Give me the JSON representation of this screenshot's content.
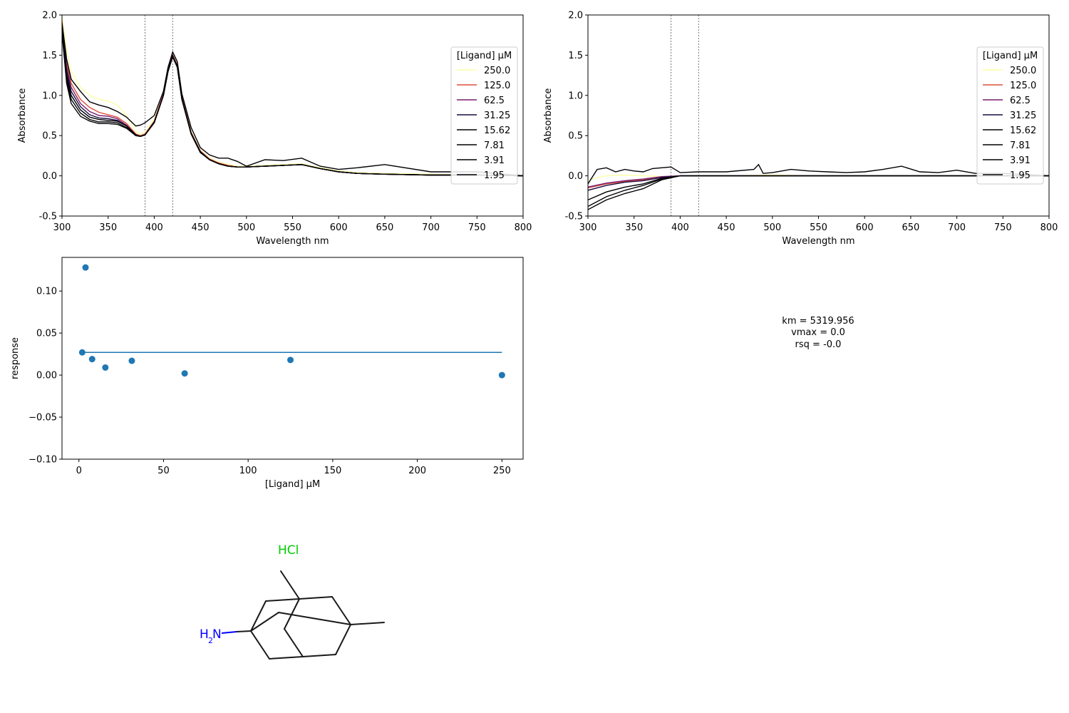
{
  "chart_data": [
    {
      "type": "line",
      "panel": "raw-spectra",
      "title": "",
      "xlabel": "Wavelength nm",
      "ylabel": "Absorbance",
      "xlim": [
        300,
        800
      ],
      "ylim": [
        -0.5,
        2.0
      ],
      "xticks": [
        300,
        350,
        400,
        450,
        500,
        550,
        600,
        650,
        700,
        750,
        800
      ],
      "yticks": [
        -0.5,
        0.0,
        0.5,
        1.0,
        1.5,
        2.0
      ],
      "vlines": [
        390,
        420
      ],
      "legend": {
        "title": "[Ligand] µM",
        "placement": "right"
      },
      "series": [
        {
          "name": "250.0",
          "color": "#fcffa4",
          "x": [
            300,
            305,
            310,
            320,
            330,
            340,
            350,
            360,
            370,
            380,
            385,
            390,
            400,
            410,
            415,
            420,
            425,
            430,
            440,
            450,
            460,
            470,
            480,
            490,
            500,
            520,
            540,
            560,
            580,
            600,
            620,
            650,
            700,
            750,
            800
          ],
          "y": [
            1.98,
            1.55,
            1.3,
            1.1,
            1.0,
            0.95,
            0.93,
            0.88,
            0.75,
            0.55,
            0.52,
            0.54,
            0.7,
            1.05,
            1.35,
            1.52,
            1.4,
            1.0,
            0.55,
            0.32,
            0.22,
            0.17,
            0.14,
            0.12,
            0.12,
            0.13,
            0.14,
            0.15,
            0.1,
            0.06,
            0.04,
            0.03,
            0.02,
            0.01,
            0.0
          ]
        },
        {
          "name": "125.0",
          "color": "#dd513a",
          "x": [
            300,
            305,
            310,
            320,
            330,
            340,
            350,
            360,
            370,
            380,
            385,
            390,
            400,
            410,
            415,
            420,
            425,
            430,
            440,
            450,
            460,
            470,
            480,
            490,
            500,
            520,
            540,
            560,
            580,
            600,
            620,
            650,
            700,
            750,
            800
          ],
          "y": [
            1.92,
            1.4,
            1.15,
            0.95,
            0.85,
            0.79,
            0.76,
            0.73,
            0.65,
            0.52,
            0.5,
            0.52,
            0.68,
            1.02,
            1.32,
            1.5,
            1.38,
            0.98,
            0.54,
            0.31,
            0.21,
            0.16,
            0.13,
            0.11,
            0.11,
            0.12,
            0.13,
            0.14,
            0.09,
            0.05,
            0.03,
            0.02,
            0.01,
            0.01,
            0.0
          ]
        },
        {
          "name": "62.5",
          "color": "#7a1c6d",
          "x": [
            300,
            305,
            310,
            320,
            330,
            340,
            350,
            360,
            370,
            380,
            385,
            390,
            400,
            410,
            415,
            420,
            425,
            430,
            440,
            450,
            460,
            470,
            480,
            490,
            500,
            520,
            540,
            560,
            580,
            600,
            620,
            650,
            700,
            750,
            800
          ],
          "y": [
            1.88,
            1.35,
            1.1,
            0.9,
            0.8,
            0.75,
            0.74,
            0.71,
            0.63,
            0.51,
            0.49,
            0.51,
            0.67,
            1.01,
            1.31,
            1.5,
            1.37,
            0.97,
            0.53,
            0.3,
            0.2,
            0.15,
            0.12,
            0.11,
            0.11,
            0.12,
            0.13,
            0.14,
            0.09,
            0.05,
            0.03,
            0.02,
            0.01,
            0.01,
            0.0
          ]
        },
        {
          "name": "31.25",
          "color": "#1b0c41",
          "x": [
            300,
            305,
            310,
            320,
            330,
            340,
            350,
            360,
            370,
            380,
            385,
            390,
            400,
            410,
            415,
            420,
            425,
            430,
            440,
            450,
            460,
            470,
            480,
            490,
            500,
            520,
            540,
            560,
            580,
            600,
            620,
            650,
            700,
            750,
            800
          ],
          "y": [
            1.85,
            1.3,
            1.05,
            0.86,
            0.76,
            0.72,
            0.71,
            0.69,
            0.62,
            0.51,
            0.49,
            0.51,
            0.67,
            1.0,
            1.3,
            1.49,
            1.36,
            0.96,
            0.53,
            0.3,
            0.2,
            0.15,
            0.12,
            0.11,
            0.11,
            0.12,
            0.13,
            0.14,
            0.09,
            0.05,
            0.03,
            0.02,
            0.01,
            0.01,
            0.0
          ]
        },
        {
          "name": "15.62",
          "color": "#000004",
          "x": [
            300,
            305,
            310,
            320,
            330,
            340,
            350,
            360,
            370,
            380,
            385,
            390,
            400,
            410,
            415,
            420,
            425,
            430,
            440,
            450,
            460,
            470,
            480,
            490,
            500,
            520,
            540,
            560,
            580,
            600,
            620,
            650,
            700,
            750,
            800
          ],
          "y": [
            1.82,
            1.25,
            1.0,
            0.82,
            0.73,
            0.7,
            0.69,
            0.68,
            0.62,
            0.51,
            0.49,
            0.51,
            0.66,
            1.0,
            1.3,
            1.49,
            1.36,
            0.96,
            0.53,
            0.3,
            0.2,
            0.15,
            0.12,
            0.11,
            0.11,
            0.12,
            0.13,
            0.14,
            0.09,
            0.05,
            0.03,
            0.02,
            0.01,
            0.01,
            0.0
          ]
        },
        {
          "name": "7.81",
          "color": "#000004",
          "x": [
            300,
            305,
            310,
            320,
            330,
            340,
            350,
            360,
            370,
            380,
            385,
            390,
            400,
            410,
            415,
            420,
            425,
            430,
            440,
            450,
            460,
            470,
            480,
            490,
            500,
            520,
            540,
            560,
            580,
            600,
            620,
            650,
            700,
            750,
            800
          ],
          "y": [
            1.8,
            1.2,
            0.95,
            0.78,
            0.7,
            0.67,
            0.67,
            0.66,
            0.6,
            0.5,
            0.49,
            0.51,
            0.66,
            1.0,
            1.3,
            1.48,
            1.35,
            0.95,
            0.52,
            0.29,
            0.2,
            0.15,
            0.12,
            0.11,
            0.11,
            0.12,
            0.13,
            0.14,
            0.09,
            0.05,
            0.03,
            0.02,
            0.01,
            0.01,
            0.0
          ]
        },
        {
          "name": "3.91",
          "color": "#000004",
          "x": [
            300,
            305,
            310,
            320,
            330,
            340,
            350,
            360,
            370,
            380,
            385,
            390,
            400,
            410,
            415,
            420,
            425,
            430,
            440,
            450,
            460,
            470,
            480,
            490,
            500,
            520,
            540,
            560,
            580,
            600,
            620,
            650,
            700,
            750,
            800
          ],
          "y": [
            1.78,
            1.15,
            0.9,
            0.74,
            0.68,
            0.65,
            0.65,
            0.64,
            0.59,
            0.5,
            0.49,
            0.51,
            0.66,
            1.0,
            1.3,
            1.48,
            1.35,
            0.95,
            0.52,
            0.29,
            0.2,
            0.15,
            0.12,
            0.11,
            0.11,
            0.12,
            0.13,
            0.14,
            0.09,
            0.05,
            0.03,
            0.02,
            0.01,
            0.01,
            0.0
          ]
        },
        {
          "name": "1.95",
          "color": "#000004",
          "x": [
            300,
            305,
            310,
            320,
            330,
            340,
            350,
            360,
            370,
            380,
            385,
            390,
            400,
            410,
            415,
            420,
            425,
            430,
            440,
            450,
            460,
            470,
            480,
            490,
            500,
            520,
            540,
            560,
            580,
            600,
            620,
            650,
            700,
            750,
            800
          ],
          "y": [
            1.9,
            1.45,
            1.2,
            1.05,
            0.92,
            0.88,
            0.85,
            0.8,
            0.73,
            0.62,
            0.63,
            0.66,
            0.75,
            1.05,
            1.35,
            1.54,
            1.42,
            1.02,
            0.6,
            0.35,
            0.26,
            0.22,
            0.22,
            0.18,
            0.12,
            0.2,
            0.19,
            0.22,
            0.12,
            0.08,
            0.1,
            0.14,
            0.05,
            0.05,
            0.0
          ]
        }
      ]
    },
    {
      "type": "line",
      "panel": "difference-spectra",
      "title": "",
      "xlabel": "Wavelength nm",
      "ylabel": "Absorbance",
      "xlim": [
        300,
        800
      ],
      "ylim": [
        -0.5,
        2.0
      ],
      "xticks": [
        300,
        350,
        400,
        450,
        500,
        550,
        600,
        650,
        700,
        750,
        800
      ],
      "yticks": [
        -0.5,
        0.0,
        0.5,
        1.0,
        1.5,
        2.0
      ],
      "vlines": [
        390,
        420
      ],
      "legend": {
        "title": "[Ligand] µM",
        "placement": "right"
      },
      "series": [
        {
          "name": "250.0",
          "color": "#fcffa4",
          "x": [
            300,
            320,
            340,
            360,
            380,
            400,
            450,
            500,
            550,
            600,
            650,
            700,
            750,
            800
          ],
          "y": [
            -0.05,
            0.0,
            0.01,
            0.0,
            -0.01,
            0.0,
            0.0,
            0.01,
            0.0,
            0.0,
            0.0,
            0.0,
            0.0,
            0.0
          ]
        },
        {
          "name": "125.0",
          "color": "#dd513a",
          "x": [
            300,
            320,
            340,
            360,
            380,
            400,
            450,
            500,
            550,
            600,
            650,
            700,
            750,
            800
          ],
          "y": [
            -0.15,
            -0.1,
            -0.07,
            -0.05,
            -0.02,
            0.0,
            0.0,
            0.0,
            0.0,
            0.0,
            0.0,
            0.0,
            0.0,
            0.0
          ]
        },
        {
          "name": "62.5",
          "color": "#7a1c6d",
          "x": [
            300,
            320,
            340,
            360,
            380,
            400,
            450,
            500,
            550,
            600,
            650,
            700,
            750,
            800
          ],
          "y": [
            -0.14,
            -0.09,
            -0.06,
            -0.04,
            -0.01,
            0.0,
            0.0,
            0.0,
            0.0,
            0.0,
            0.0,
            0.0,
            0.0,
            0.0
          ]
        },
        {
          "name": "31.25",
          "color": "#1b0c41",
          "x": [
            300,
            320,
            340,
            360,
            380,
            400,
            450,
            500,
            550,
            600,
            650,
            700,
            750,
            800
          ],
          "y": [
            -0.18,
            -0.12,
            -0.08,
            -0.06,
            -0.02,
            0.0,
            0.0,
            0.0,
            0.0,
            0.0,
            0.0,
            0.0,
            0.0,
            0.0
          ]
        },
        {
          "name": "15.62",
          "color": "#000004",
          "x": [
            300,
            320,
            340,
            360,
            380,
            400,
            450,
            500,
            550,
            600,
            650,
            700,
            750,
            800
          ],
          "y": [
            -0.3,
            -0.2,
            -0.14,
            -0.1,
            -0.03,
            0.0,
            0.0,
            0.0,
            0.0,
            0.0,
            0.0,
            0.0,
            0.0,
            0.0
          ]
        },
        {
          "name": "7.81",
          "color": "#000004",
          "x": [
            300,
            320,
            340,
            360,
            380,
            400,
            450,
            500,
            550,
            600,
            650,
            700,
            750,
            800
          ],
          "y": [
            -0.38,
            -0.26,
            -0.18,
            -0.12,
            -0.04,
            0.0,
            0.0,
            0.0,
            0.0,
            0.0,
            0.0,
            0.0,
            0.0,
            0.0
          ]
        },
        {
          "name": "3.91",
          "color": "#000004",
          "x": [
            300,
            320,
            340,
            360,
            380,
            400,
            450,
            500,
            550,
            600,
            650,
            700,
            750,
            800
          ],
          "y": [
            -0.42,
            -0.3,
            -0.22,
            -0.16,
            -0.05,
            0.0,
            0.0,
            0.0,
            0.0,
            0.0,
            0.0,
            0.0,
            0.0,
            0.0
          ]
        },
        {
          "name": "1.95",
          "color": "#000004",
          "x": [
            300,
            310,
            320,
            330,
            340,
            350,
            360,
            370,
            380,
            390,
            400,
            420,
            450,
            480,
            485,
            490,
            500,
            520,
            540,
            560,
            580,
            600,
            620,
            640,
            660,
            680,
            700,
            720,
            750,
            800
          ],
          "y": [
            -0.1,
            0.08,
            0.1,
            0.05,
            0.08,
            0.06,
            0.05,
            0.09,
            0.1,
            0.11,
            0.04,
            0.05,
            0.05,
            0.08,
            0.14,
            0.03,
            0.04,
            0.08,
            0.06,
            0.05,
            0.04,
            0.05,
            0.08,
            0.12,
            0.05,
            0.04,
            0.07,
            0.03,
            0.03,
            0.0
          ]
        }
      ]
    },
    {
      "type": "scatter",
      "panel": "response-fit",
      "title": "",
      "xlabel": "[Ligand] µM",
      "ylabel": "response",
      "xlim": [
        -10,
        262.5
      ],
      "ylim": [
        -0.1,
        0.14
      ],
      "xticks": [
        0,
        50,
        100,
        150,
        200,
        250
      ],
      "yticks": [
        -0.1,
        -0.05,
        0.0,
        0.05,
        0.1
      ],
      "ytick_labels": [
        "−0.10",
        "−0.05",
        "0.00",
        "0.05",
        "0.10"
      ],
      "points": {
        "x": [
          1.95,
          3.91,
          7.81,
          15.62,
          31.25,
          62.5,
          125.0,
          250.0
        ],
        "y": [
          0.027,
          0.128,
          0.019,
          0.009,
          0.017,
          0.002,
          0.018,
          0.0
        ]
      },
      "fit_line": {
        "x": [
          1.95,
          250.0
        ],
        "y": [
          0.027,
          0.027
        ]
      },
      "color": "#1f77b4"
    }
  ],
  "fit_text": {
    "km": "km = 5319.956",
    "vmax": "vmax = 0.0",
    "rsq": "rsq = -0.0"
  },
  "molecule": {
    "hcl_label": "HCl",
    "amine_label_h": "H",
    "amine_label_sub": "2",
    "amine_label_n": "N"
  }
}
